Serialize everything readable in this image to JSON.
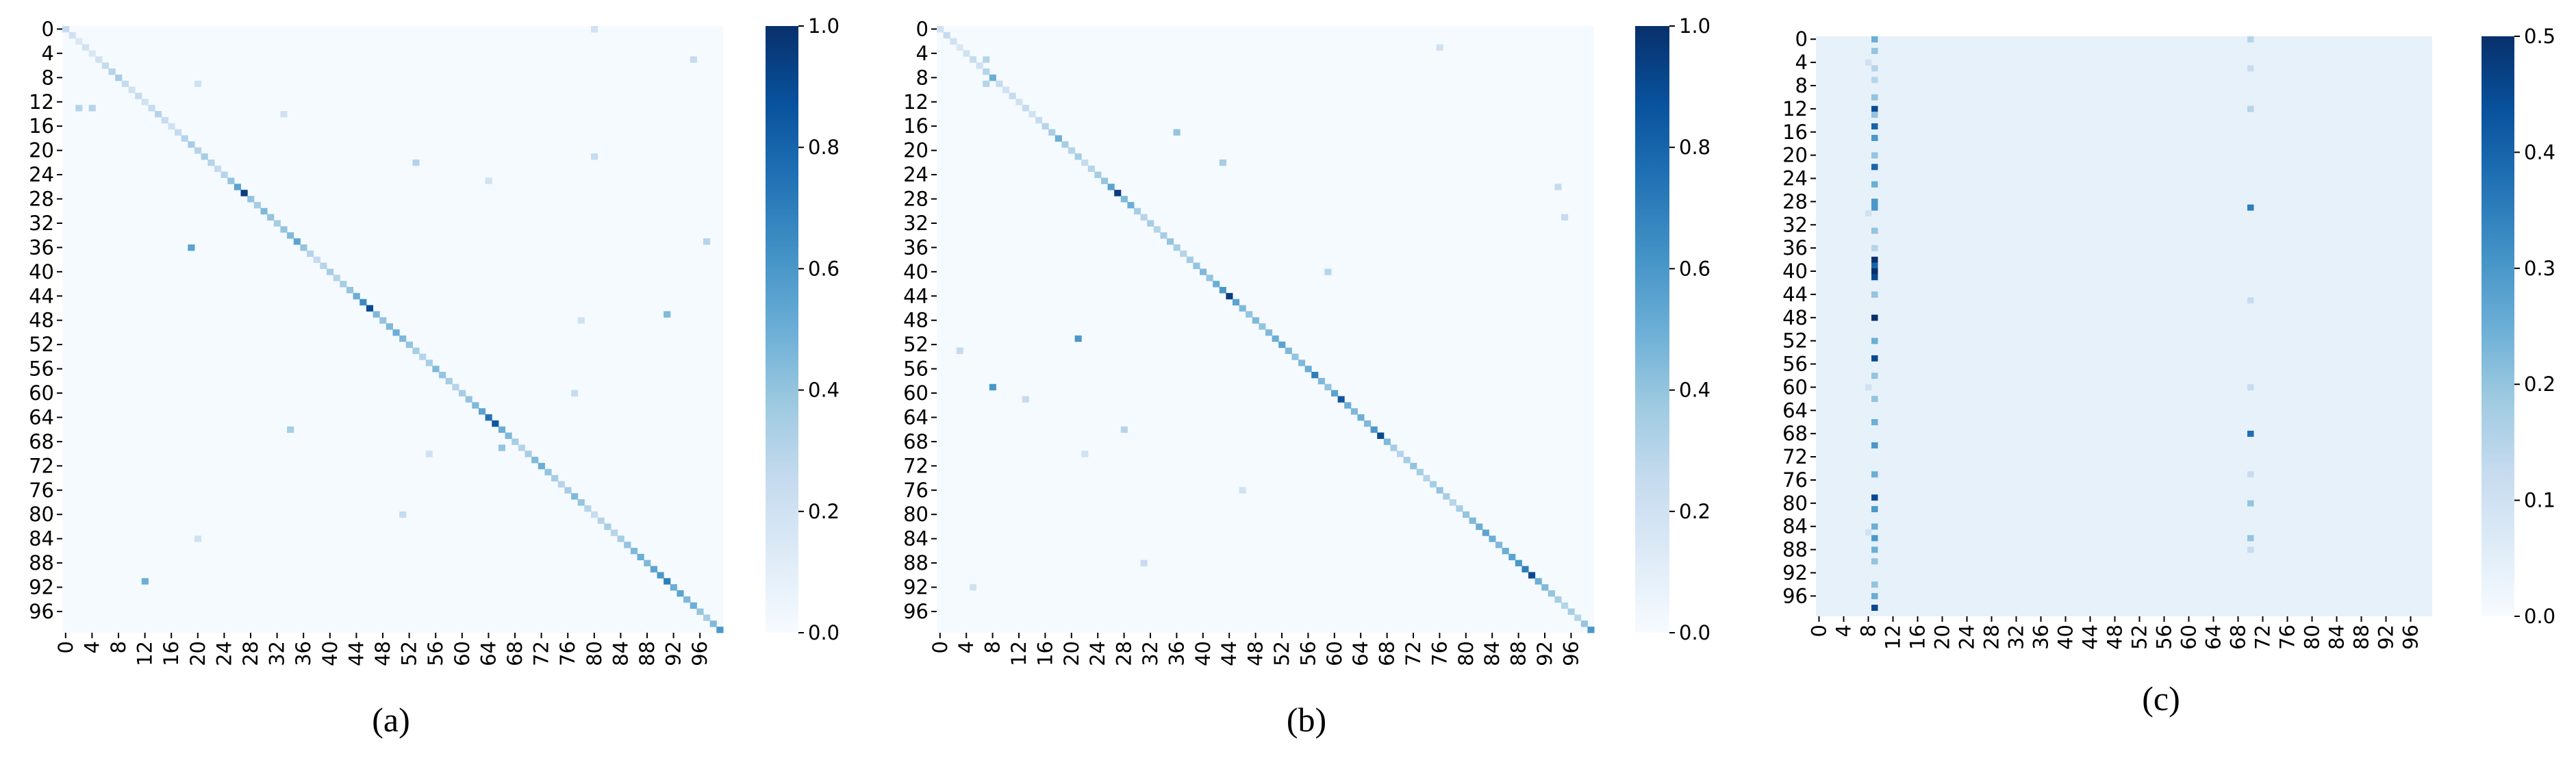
{
  "chart_data": [
    {
      "type": "heatmap",
      "caption": "(a)",
      "colormap": "Blues",
      "background": 0.01,
      "xlim": [
        0,
        100
      ],
      "ylim": [
        0,
        100
      ],
      "xticks": [
        0,
        4,
        8,
        12,
        16,
        20,
        24,
        28,
        32,
        36,
        40,
        44,
        48,
        52,
        56,
        60,
        64,
        68,
        72,
        76,
        80,
        84,
        88,
        92,
        96
      ],
      "yticks": [
        0,
        4,
        8,
        12,
        16,
        20,
        24,
        28,
        32,
        36,
        40,
        44,
        48,
        52,
        56,
        60,
        64,
        68,
        72,
        76,
        80,
        84,
        88,
        92,
        96
      ],
      "clim": [
        0,
        1
      ],
      "cticks": [
        {
          "value": 0,
          "label": "0.0"
        },
        0.2,
        0.4,
        0.6,
        0.8,
        {
          "value": 1,
          "label": "1.0"
        }
      ],
      "diagonal": [
        0.25,
        0.2,
        0.15,
        0.2,
        0.15,
        0.2,
        0.25,
        0.3,
        0.35,
        0.25,
        0.2,
        0.25,
        0.2,
        0.25,
        0.3,
        0.25,
        0.2,
        0.25,
        0.3,
        0.35,
        0.3,
        0.35,
        0.3,
        0.25,
        0.3,
        0.4,
        0.55,
        0.95,
        0.4,
        0.35,
        0.45,
        0.4,
        0.35,
        0.4,
        0.45,
        0.55,
        0.4,
        0.3,
        0.25,
        0.3,
        0.35,
        0.3,
        0.35,
        0.4,
        0.5,
        0.65,
        0.9,
        0.45,
        0.4,
        0.45,
        0.5,
        0.45,
        0.4,
        0.35,
        0.3,
        0.35,
        0.45,
        0.4,
        0.35,
        0.3,
        0.35,
        0.4,
        0.45,
        0.55,
        0.75,
        0.85,
        0.5,
        0.45,
        0.35,
        0.3,
        0.35,
        0.45,
        0.5,
        0.4,
        0.35,
        0.3,
        0.35,
        0.45,
        0.4,
        0.3,
        0.25,
        0.3,
        0.35,
        0.3,
        0.35,
        0.4,
        0.45,
        0.5,
        0.45,
        0.55,
        0.6,
        0.7,
        0.5,
        0.55,
        0.45,
        0.5,
        0.4,
        0.35,
        0.45,
        0.6
      ],
      "cells": [
        [
          36,
          19,
          0.55
        ],
        [
          91,
          12,
          0.5
        ],
        [
          47,
          91,
          0.45
        ],
        [
          69,
          66,
          0.4
        ],
        [
          66,
          34,
          0.35
        ],
        [
          13,
          2,
          0.3
        ],
        [
          13,
          4,
          0.3
        ],
        [
          22,
          53,
          0.3
        ],
        [
          60,
          77,
          0.25
        ],
        [
          80,
          51,
          0.25
        ],
        [
          35,
          97,
          0.3
        ],
        [
          0,
          80,
          0.2
        ],
        [
          21,
          80,
          0.25
        ],
        [
          14,
          33,
          0.2
        ],
        [
          70,
          55,
          0.2
        ],
        [
          84,
          20,
          0.2
        ],
        [
          9,
          20,
          0.2
        ],
        [
          5,
          95,
          0.25
        ],
        [
          25,
          64,
          0.2
        ],
        [
          48,
          78,
          0.2
        ]
      ]
    },
    {
      "type": "heatmap",
      "caption": "(b)",
      "colormap": "Blues",
      "background": 0.01,
      "xlim": [
        0,
        100
      ],
      "ylim": [
        0,
        100
      ],
      "xticks": [
        0,
        4,
        8,
        12,
        16,
        20,
        24,
        28,
        32,
        36,
        40,
        44,
        48,
        52,
        56,
        60,
        64,
        68,
        72,
        76,
        80,
        84,
        88,
        92,
        96
      ],
      "yticks": [
        0,
        4,
        8,
        12,
        16,
        20,
        24,
        28,
        32,
        36,
        40,
        44,
        48,
        52,
        56,
        60,
        64,
        68,
        72,
        76,
        80,
        84,
        88,
        92,
        96
      ],
      "clim": [
        0,
        1
      ],
      "cticks": [
        {
          "value": 0,
          "label": "0.0"
        },
        0.2,
        0.4,
        0.6,
        0.8,
        {
          "value": 1,
          "label": "1.0"
        }
      ],
      "diagonal": [
        0.2,
        0.25,
        0.2,
        0.15,
        0.2,
        0.25,
        0.2,
        0.3,
        0.5,
        0.25,
        0.2,
        0.25,
        0.2,
        0.25,
        0.2,
        0.25,
        0.3,
        0.35,
        0.5,
        0.35,
        0.3,
        0.35,
        0.25,
        0.3,
        0.35,
        0.4,
        0.55,
        0.95,
        0.45,
        0.5,
        0.35,
        0.3,
        0.35,
        0.3,
        0.35,
        0.4,
        0.35,
        0.3,
        0.35,
        0.4,
        0.45,
        0.4,
        0.5,
        0.6,
        0.95,
        0.55,
        0.45,
        0.4,
        0.45,
        0.4,
        0.45,
        0.5,
        0.55,
        0.45,
        0.4,
        0.45,
        0.5,
        0.7,
        0.45,
        0.4,
        0.55,
        0.85,
        0.5,
        0.45,
        0.5,
        0.45,
        0.6,
        0.9,
        0.45,
        0.35,
        0.3,
        0.35,
        0.4,
        0.35,
        0.3,
        0.35,
        0.4,
        0.35,
        0.3,
        0.35,
        0.4,
        0.45,
        0.5,
        0.55,
        0.5,
        0.45,
        0.5,
        0.55,
        0.6,
        0.7,
        0.9,
        0.5,
        0.45,
        0.4,
        0.35,
        0.3,
        0.35,
        0.3,
        0.4,
        0.6
      ],
      "cells": [
        [
          59,
          8,
          0.6
        ],
        [
          51,
          21,
          0.6
        ],
        [
          17,
          36,
          0.4
        ],
        [
          22,
          43,
          0.35
        ],
        [
          40,
          59,
          0.3
        ],
        [
          66,
          28,
          0.3
        ],
        [
          88,
          31,
          0.25
        ],
        [
          53,
          3,
          0.25
        ],
        [
          61,
          13,
          0.25
        ],
        [
          5,
          7,
          0.3
        ],
        [
          9,
          7,
          0.3
        ],
        [
          92,
          5,
          0.2
        ],
        [
          26,
          94,
          0.25
        ],
        [
          76,
          46,
          0.2
        ],
        [
          70,
          22,
          0.2
        ],
        [
          31,
          95,
          0.25
        ],
        [
          3,
          76,
          0.2
        ]
      ]
    },
    {
      "type": "heatmap",
      "caption": "(c)",
      "colormap": "Blues",
      "background": 0.04,
      "xlim": [
        0,
        100
      ],
      "ylim": [
        0,
        100
      ],
      "xticks": [
        0,
        4,
        8,
        12,
        16,
        20,
        24,
        28,
        32,
        36,
        40,
        44,
        48,
        52,
        56,
        60,
        64,
        68,
        72,
        76,
        80,
        84,
        88,
        92,
        96
      ],
      "yticks": [
        0,
        4,
        8,
        12,
        16,
        20,
        24,
        28,
        32,
        36,
        40,
        44,
        48,
        52,
        56,
        60,
        64,
        68,
        72,
        76,
        80,
        84,
        88,
        92,
        96
      ],
      "clim": [
        0,
        0.5
      ],
      "cticks": [
        {
          "value": 0,
          "label": "0.0"
        },
        0.1,
        0.2,
        0.3,
        0.4,
        0.5
      ],
      "cells": [
        [
          0,
          9,
          0.25
        ],
        [
          2,
          9,
          0.2
        ],
        [
          5,
          9,
          0.15
        ],
        [
          7,
          9,
          0.15
        ],
        [
          10,
          9,
          0.2
        ],
        [
          12,
          9,
          0.45
        ],
        [
          13,
          9,
          0.2
        ],
        [
          15,
          9,
          0.4
        ],
        [
          17,
          9,
          0.3
        ],
        [
          20,
          9,
          0.2
        ],
        [
          22,
          9,
          0.4
        ],
        [
          25,
          9,
          0.25
        ],
        [
          28,
          9,
          0.3
        ],
        [
          29,
          9,
          0.3
        ],
        [
          33,
          9,
          0.2
        ],
        [
          36,
          9,
          0.15
        ],
        [
          38,
          9,
          0.5
        ],
        [
          39,
          9,
          0.4
        ],
        [
          40,
          9,
          0.5
        ],
        [
          41,
          9,
          0.45
        ],
        [
          44,
          9,
          0.2
        ],
        [
          48,
          9,
          0.5
        ],
        [
          52,
          9,
          0.25
        ],
        [
          55,
          9,
          0.45
        ],
        [
          58,
          9,
          0.2
        ],
        [
          62,
          9,
          0.2
        ],
        [
          66,
          9,
          0.25
        ],
        [
          70,
          9,
          0.3
        ],
        [
          75,
          9,
          0.25
        ],
        [
          79,
          9,
          0.45
        ],
        [
          81,
          9,
          0.3
        ],
        [
          84,
          9,
          0.25
        ],
        [
          86,
          9,
          0.3
        ],
        [
          88,
          9,
          0.25
        ],
        [
          90,
          9,
          0.2
        ],
        [
          94,
          9,
          0.2
        ],
        [
          96,
          9,
          0.25
        ],
        [
          98,
          9,
          0.45
        ],
        [
          4,
          8,
          0.1
        ],
        [
          30,
          8,
          0.1
        ],
        [
          60,
          8,
          0.1
        ],
        [
          85,
          8,
          0.1
        ],
        [
          0,
          70,
          0.15
        ],
        [
          5,
          70,
          0.12
        ],
        [
          12,
          70,
          0.15
        ],
        [
          29,
          70,
          0.35
        ],
        [
          45,
          70,
          0.12
        ],
        [
          60,
          70,
          0.12
        ],
        [
          68,
          70,
          0.38
        ],
        [
          75,
          70,
          0.12
        ],
        [
          80,
          70,
          0.2
        ],
        [
          86,
          70,
          0.2
        ],
        [
          88,
          70,
          0.12
        ]
      ]
    }
  ]
}
